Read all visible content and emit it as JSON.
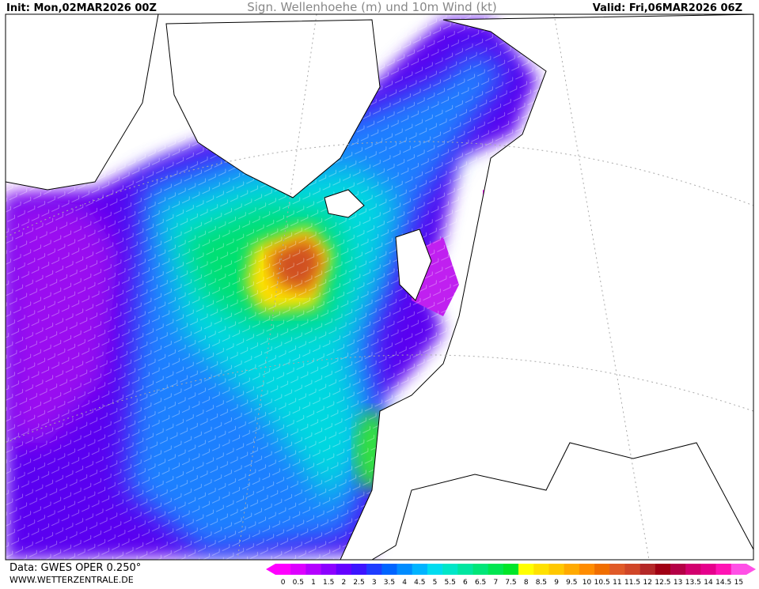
{
  "header": {
    "init": "Init: Mon,02MAR2026 00Z",
    "title": "Sign. Wellenhoehe (m) und 10m Wind (kt)",
    "valid": "Valid: Fri,06MAR2026 06Z"
  },
  "footer": {
    "data": "Data: GWES OPER 0.250°",
    "url": "WWW.WETTERZENTRALE.DE"
  },
  "colorbar": {
    "ticks": [
      0,
      0.5,
      1,
      1.5,
      2,
      2.5,
      3,
      3.5,
      4,
      4.5,
      5,
      5.5,
      6,
      6.5,
      7,
      7.5,
      8,
      8.5,
      9,
      9.5,
      10,
      10.5,
      11,
      11.5,
      12,
      12.5,
      13,
      13.5,
      14,
      14.5,
      15
    ],
    "colors": [
      "#ff00ff",
      "#dd00ff",
      "#b400ff",
      "#8c00ff",
      "#6400ff",
      "#3c14ff",
      "#1e3cff",
      "#0064ff",
      "#008cff",
      "#00b4ff",
      "#00dcf0",
      "#00e6c8",
      "#00e6a0",
      "#00e678",
      "#00e650",
      "#00e628",
      "#ffff00",
      "#ffe100",
      "#ffc800",
      "#ffaa00",
      "#ff8c00",
      "#f06e00",
      "#e05a28",
      "#d04628",
      "#b42828",
      "#a00014",
      "#b40046",
      "#d2006e",
      "#e6008c",
      "#ff14b4",
      "#ff50e6"
    ]
  }
}
